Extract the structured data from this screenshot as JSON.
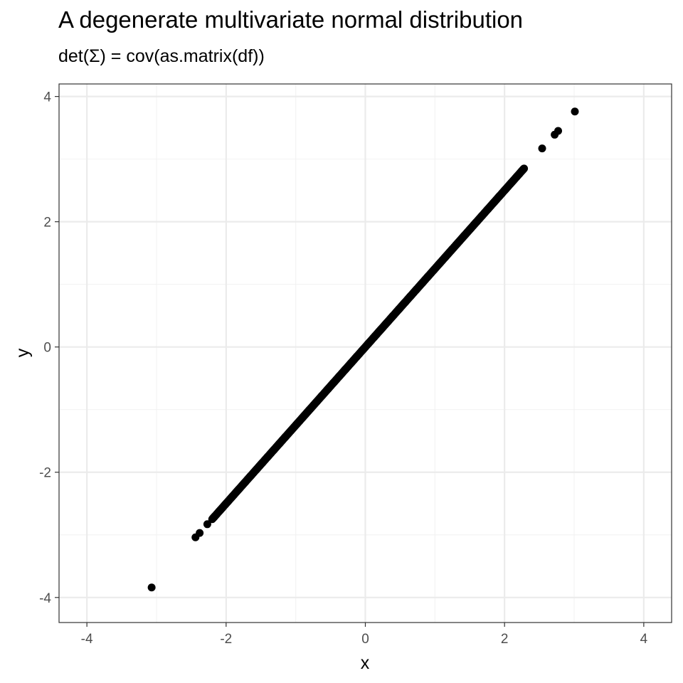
{
  "chart_data": {
    "type": "scatter",
    "title": "A degenerate multivariate normal distribution",
    "subtitle": "det(Σ) = cov(as.matrix(df))",
    "xlabel": "x",
    "ylabel": "y",
    "xlim": [
      -4.4,
      4.4
    ],
    "ylim": [
      -4.4,
      4.2
    ],
    "x_ticks": [
      -4,
      -2,
      0,
      2,
      4
    ],
    "y_ticks": [
      -4,
      -2,
      0,
      2,
      4
    ],
    "grid": true,
    "point_color": "#000000",
    "panel_border_color": "#333333",
    "grid_major_color": "#ebebeb",
    "grid_minor_color": "#f2f2f2",
    "line_fit": {
      "slope": 1.25,
      "intercept": 0.0
    },
    "dense_segment": {
      "x_from": -2.2,
      "x_to": 2.28,
      "n": 1000
    },
    "points": [
      {
        "x": -3.07,
        "y": -3.84
      },
      {
        "x": -2.44,
        "y": -3.04
      },
      {
        "x": -2.38,
        "y": -2.97
      },
      {
        "x": -2.27,
        "y": -2.83
      },
      {
        "x": 2.54,
        "y": 3.17
      },
      {
        "x": 2.72,
        "y": 3.39
      },
      {
        "x": 2.77,
        "y": 3.45
      },
      {
        "x": 3.01,
        "y": 3.76
      }
    ]
  }
}
